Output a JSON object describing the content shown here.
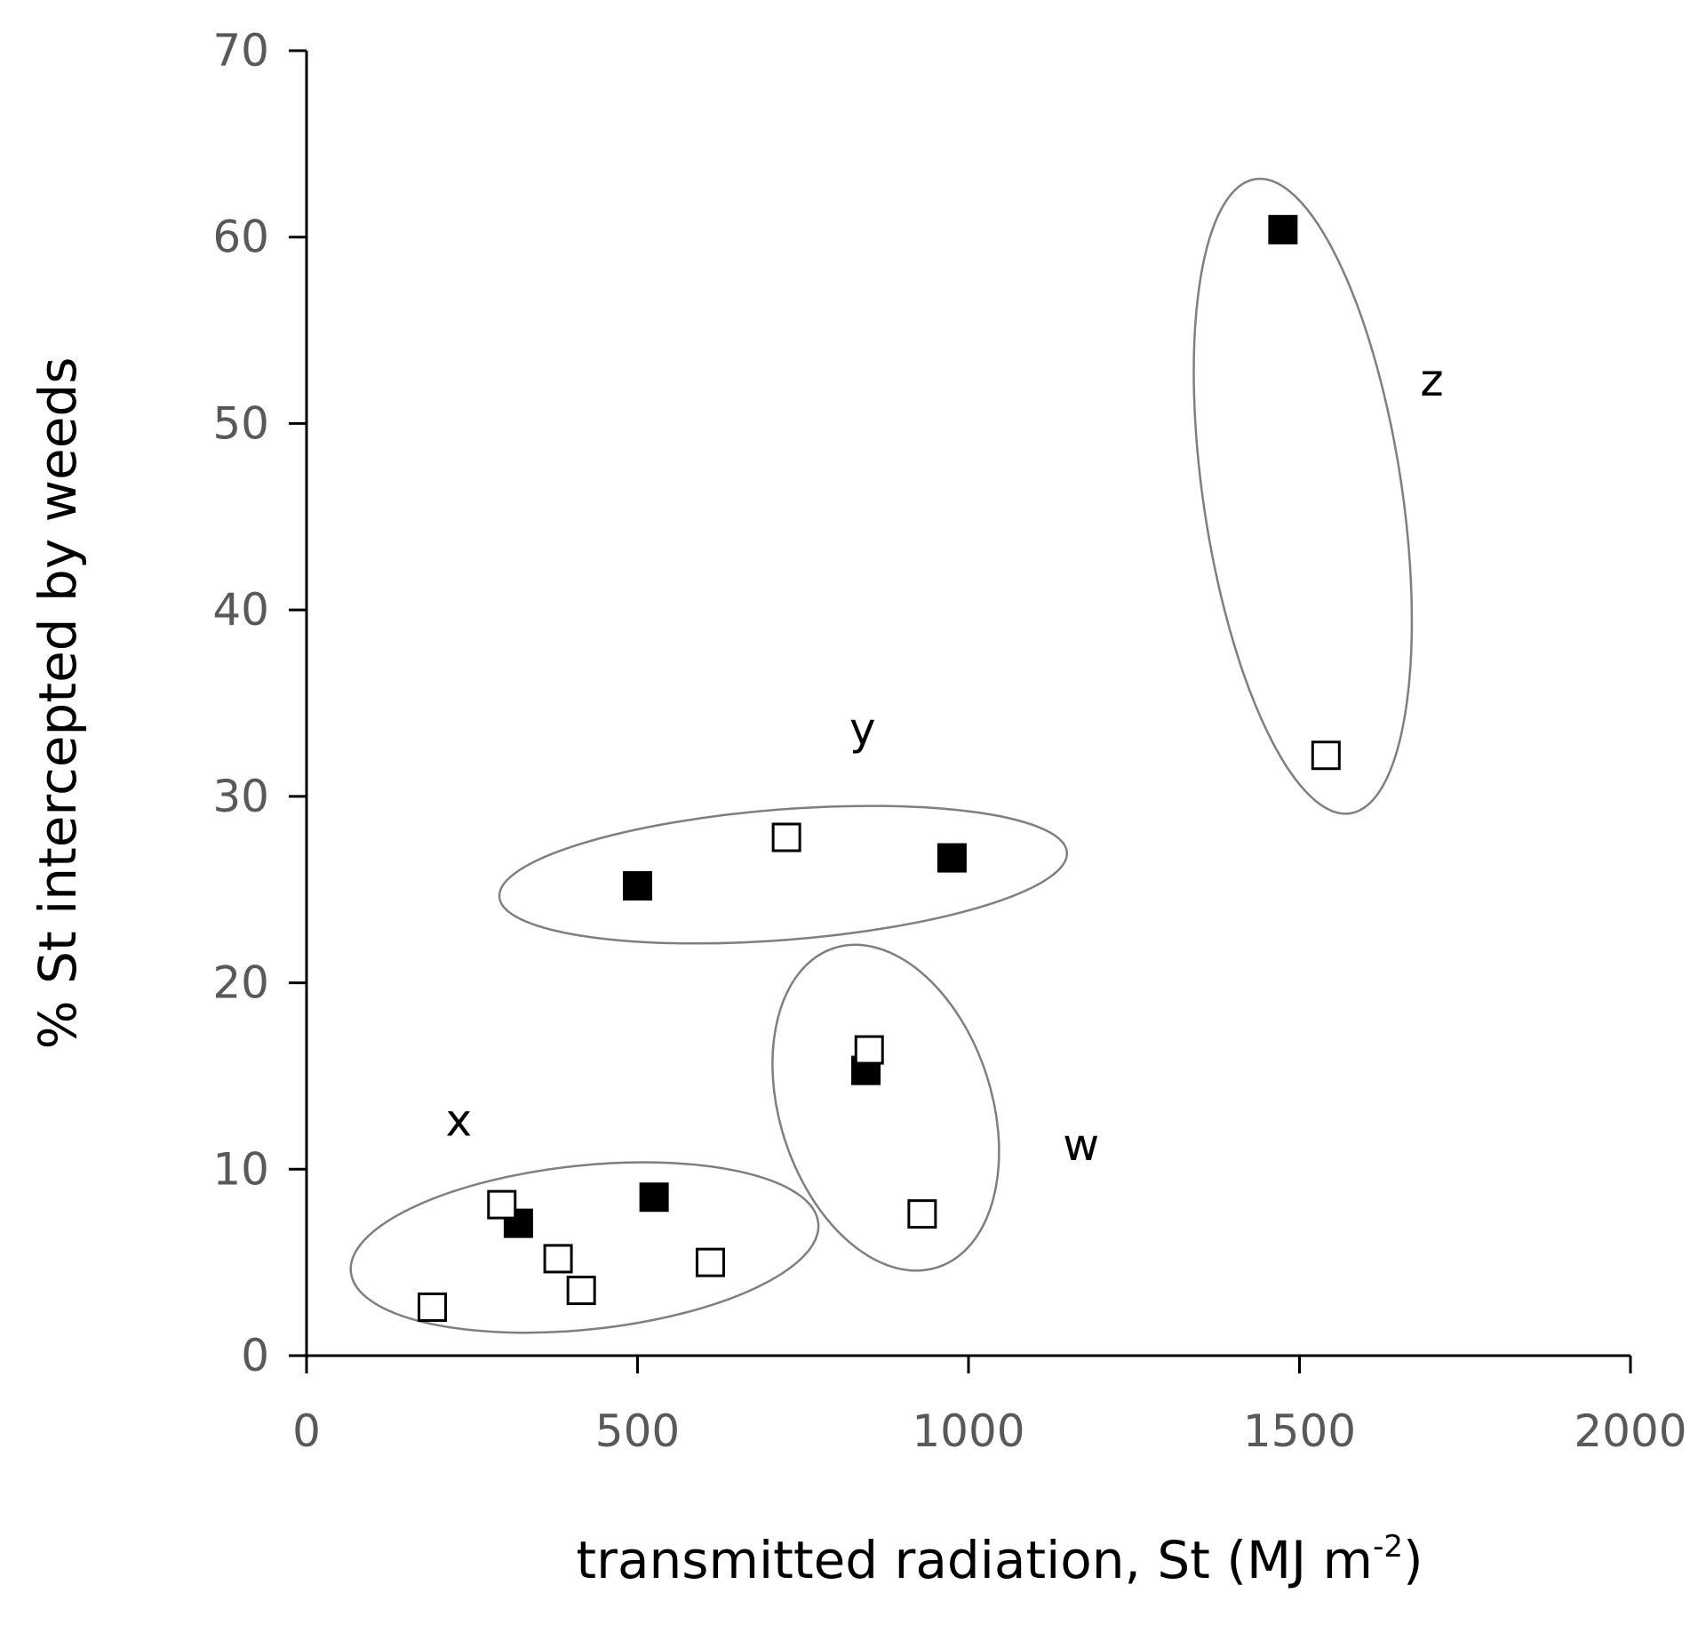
{
  "chart_data": {
    "type": "scatter",
    "title": "",
    "xlabel": "transmitted radiation, St (MJ m",
    "xlabel_superscript": "-2",
    "xlabel_close": ")",
    "ylabel": "% St intercepted by weeds",
    "xlim": [
      0,
      2000
    ],
    "ylim": [
      0,
      70
    ],
    "xticks": [
      0,
      500,
      1000,
      1500,
      2000
    ],
    "yticks": [
      0,
      10,
      20,
      30,
      40,
      50,
      60,
      70
    ],
    "grid": false,
    "colors": {
      "axis": "#000000",
      "tick_text": "#595959",
      "ellipse": "#7f7f7f",
      "filled": "#000000",
      "open_fill": "#ffffff"
    },
    "series": [
      {
        "name": "filled",
        "marker": "filled-square",
        "points": [
          {
            "x": 1475,
            "y": 60.4
          },
          {
            "x": 500,
            "y": 25.2
          },
          {
            "x": 975,
            "y": 26.7
          },
          {
            "x": 845,
            "y": 15.3
          },
          {
            "x": 525,
            "y": 8.5
          },
          {
            "x": 320,
            "y": 7.1
          }
        ]
      },
      {
        "name": "open",
        "marker": "open-square",
        "points": [
          {
            "x": 1540,
            "y": 32.2
          },
          {
            "x": 725,
            "y": 27.8
          },
          {
            "x": 850,
            "y": 16.4
          },
          {
            "x": 930,
            "y": 7.6
          },
          {
            "x": 295,
            "y": 8.1
          },
          {
            "x": 380,
            "y": 5.2
          },
          {
            "x": 415,
            "y": 3.5
          },
          {
            "x": 610,
            "y": 5.0
          },
          {
            "x": 190,
            "y": 2.6
          }
        ]
      }
    ],
    "groups": [
      {
        "label": "z",
        "ellipse": {
          "cx": 1505,
          "cy": 46.1,
          "rx": 150,
          "ry": 17.2,
          "rotate": -8.5
        },
        "label_pos": {
          "x": 1700,
          "y": 51.5
        }
      },
      {
        "label": "y",
        "ellipse": {
          "cx": 720,
          "cy": 25.8,
          "rx": 430,
          "ry": 3.5,
          "rotate": -4.5
        },
        "label_pos": {
          "x": 840,
          "y": 32.8
        }
      },
      {
        "label": "w",
        "ellipse": {
          "cx": 875,
          "cy": 13.3,
          "rx": 160,
          "ry": 9.0,
          "rotate": -18
        },
        "label_pos": {
          "x": 1170,
          "y": 10.5
        }
      },
      {
        "label": "x",
        "ellipse": {
          "cx": 420,
          "cy": 5.8,
          "rx": 355,
          "ry": 4.4,
          "rotate": -6
        },
        "label_pos": {
          "x": 230,
          "y": 11.8
        }
      }
    ]
  }
}
